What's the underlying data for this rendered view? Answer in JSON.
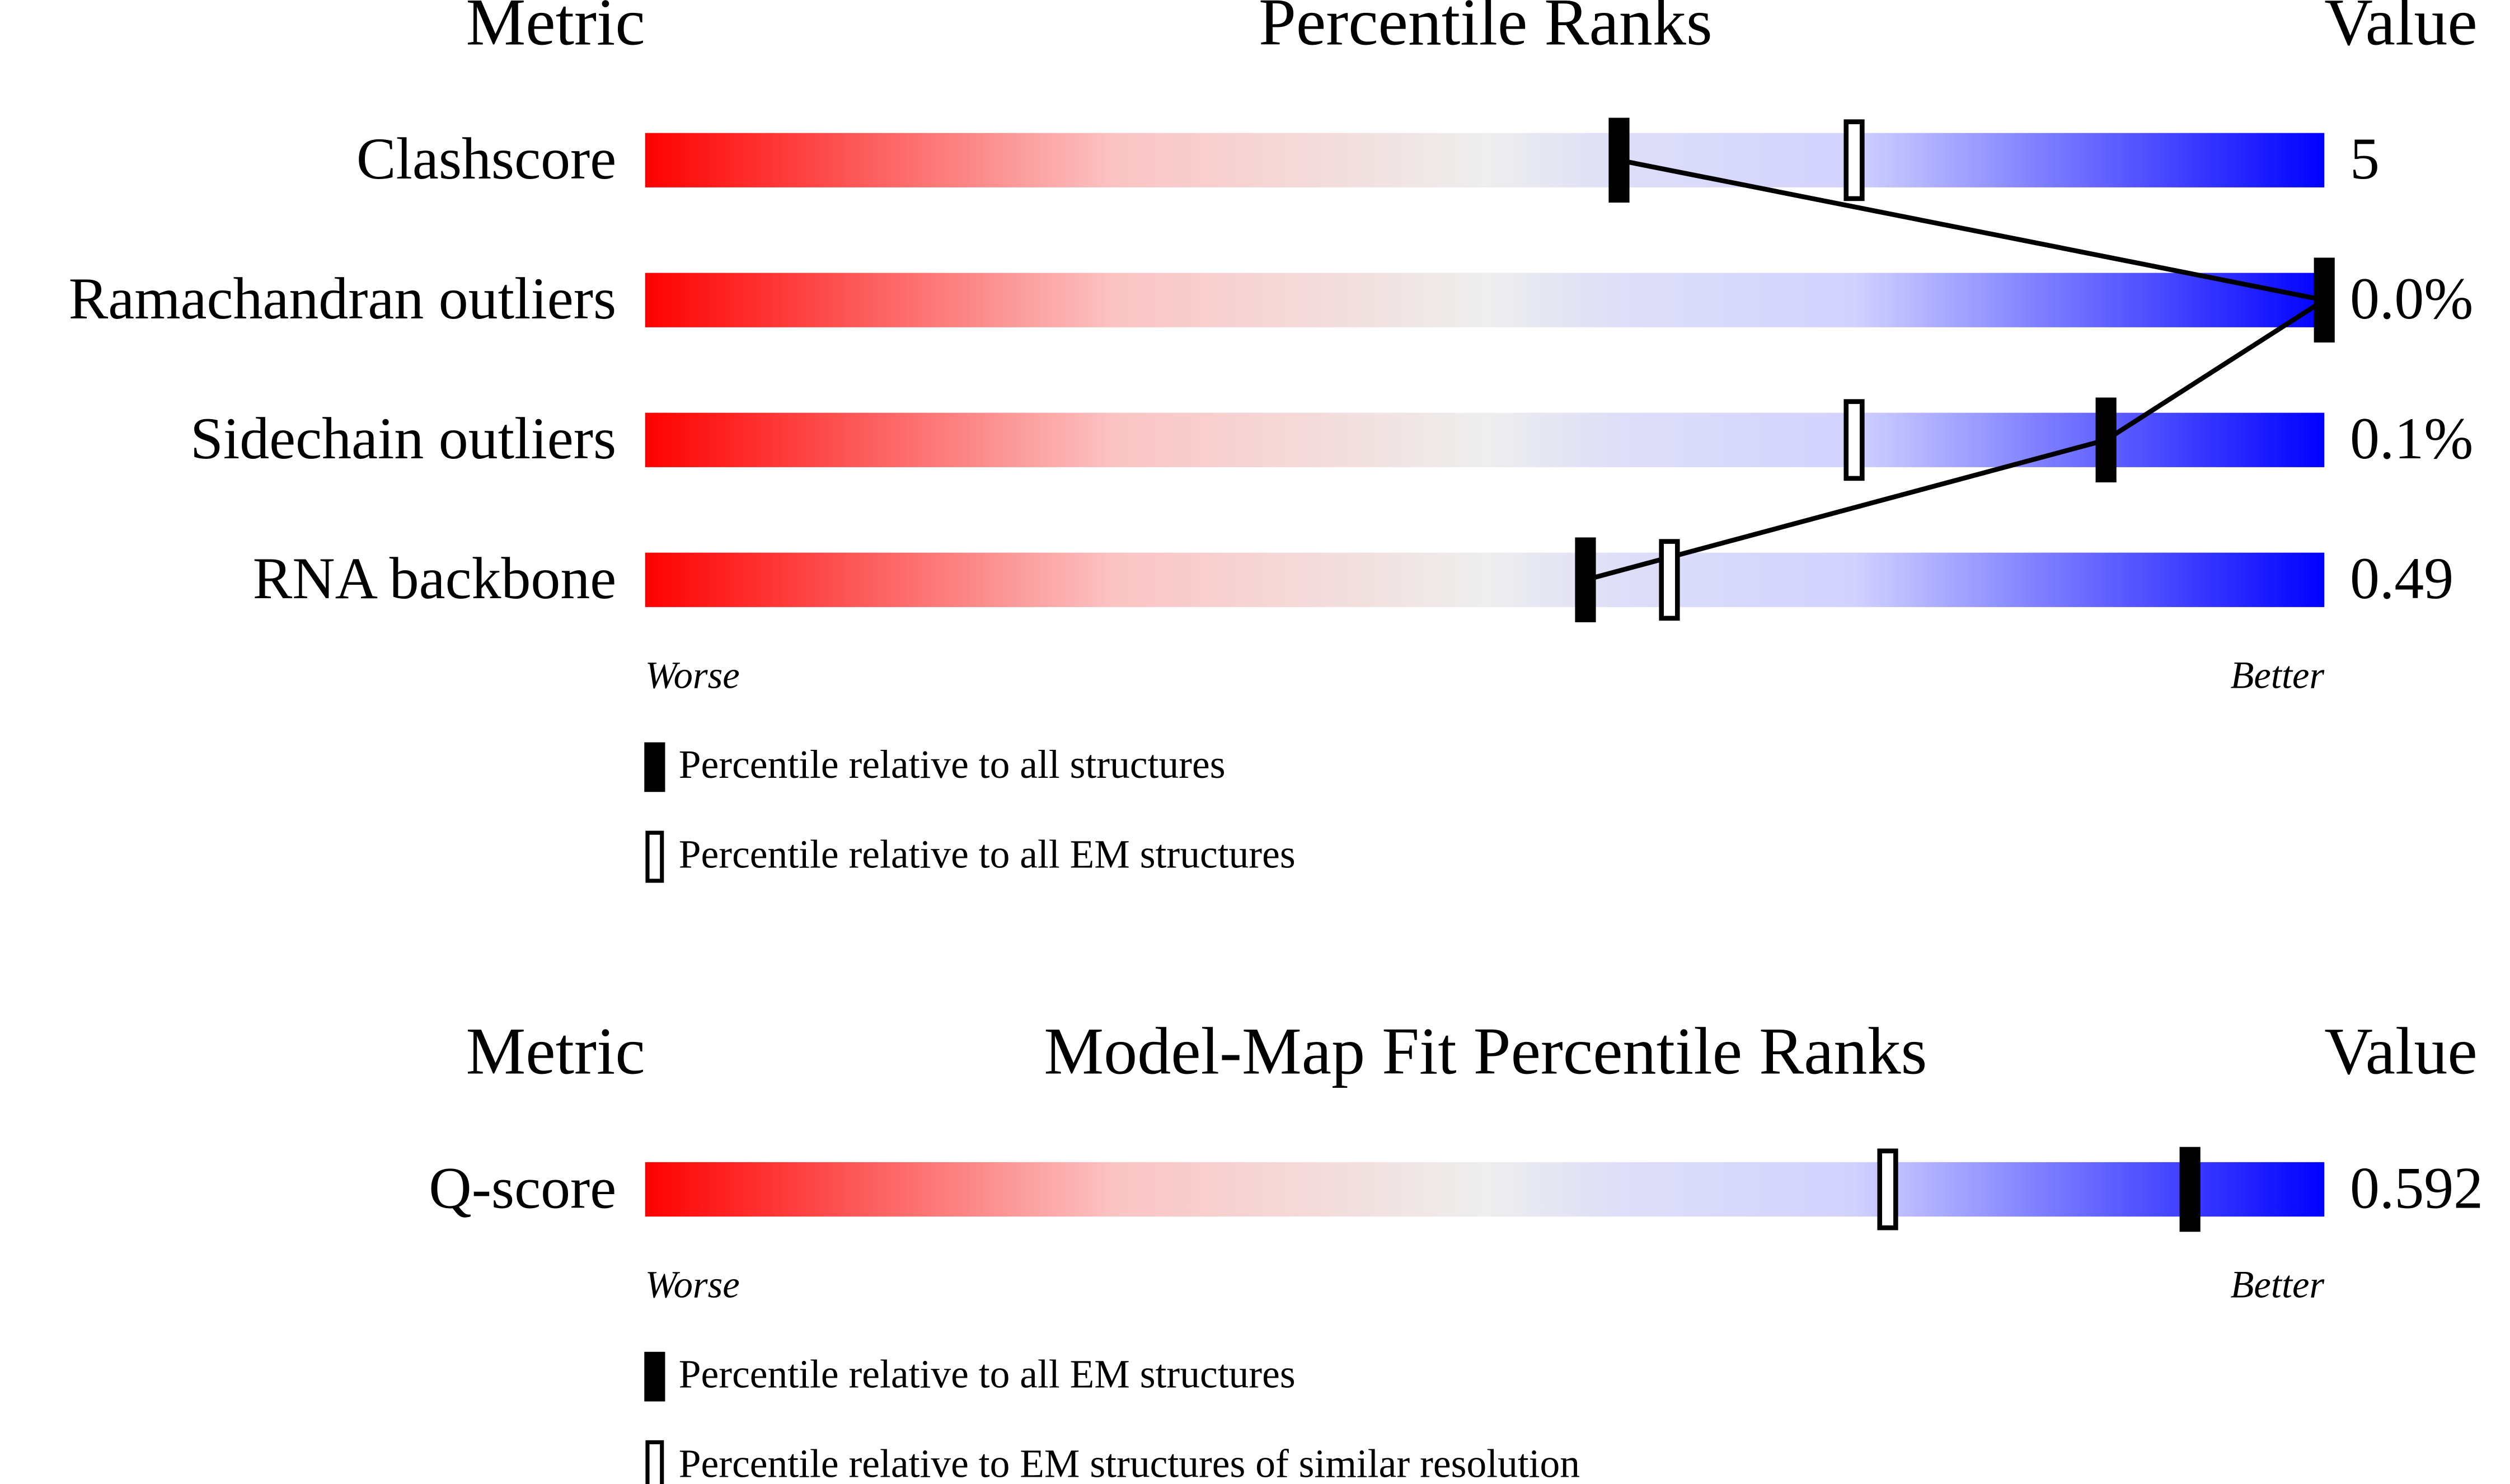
{
  "chart_data": [
    {
      "type": "percentile",
      "header": {
        "metric": "Metric",
        "title": "Percentile Ranks",
        "value": "Value"
      },
      "categories": [
        "Clashscore",
        "Ramachandran outliers",
        "Sidechain outliers",
        "RNA backbone"
      ],
      "metric_values": [
        "5",
        "0.0%",
        "0.1%",
        "0.49"
      ],
      "xlim": [
        0,
        100
      ],
      "worse": "Worse",
      "better": "Better",
      "connect": true,
      "series": [
        {
          "name": "Percentile relative to all structures",
          "style": "filled",
          "values": [
            58,
            100,
            87,
            56
          ]
        },
        {
          "name": "Percentile relative to all EM structures",
          "style": "open",
          "values": [
            72,
            null,
            72,
            61
          ]
        }
      ]
    },
    {
      "type": "percentile",
      "header": {
        "metric": "Metric",
        "title": "Model-Map Fit Percentile Ranks",
        "value": "Value"
      },
      "categories": [
        "Q-score"
      ],
      "metric_values": [
        "0.592"
      ],
      "xlim": [
        0,
        100
      ],
      "worse": "Worse",
      "better": "Better",
      "connect": false,
      "series": [
        {
          "name": "Percentile relative to all EM structures",
          "style": "filled",
          "values": [
            92
          ]
        },
        {
          "name": "Percentile relative to EM structures of similar resolution",
          "style": "open",
          "values": [
            74
          ]
        }
      ]
    }
  ]
}
